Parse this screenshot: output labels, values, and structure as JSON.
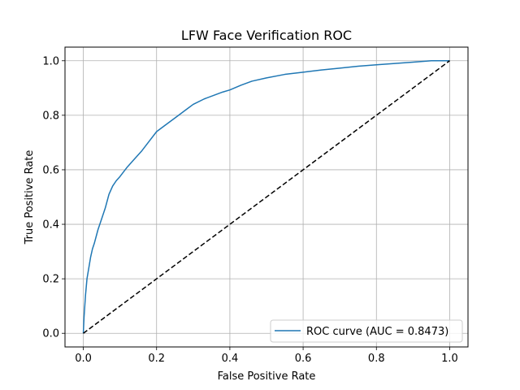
{
  "chart_data": {
    "type": "line",
    "title": "LFW Face Verification ROC",
    "xlabel": "False Positive Rate",
    "ylabel": "True Positive Rate",
    "xlim": [
      -0.05,
      1.05
    ],
    "ylim": [
      -0.05,
      1.05
    ],
    "grid": true,
    "legend_position": "lower right",
    "xticks": [
      0.0,
      0.2,
      0.4,
      0.6,
      0.8,
      1.0
    ],
    "yticks": [
      0.0,
      0.2,
      0.4,
      0.6,
      0.8,
      1.0
    ],
    "xtick_labels": [
      "0.0",
      "0.2",
      "0.4",
      "0.6",
      "0.8",
      "1.0"
    ],
    "ytick_labels": [
      "0.0",
      "0.2",
      "0.4",
      "0.6",
      "0.8",
      "1.0"
    ],
    "series": [
      {
        "name": "ROC curve (AUC = 0.8473)",
        "color": "#1f77b4",
        "style": "solid",
        "x": [
          0.0,
          0.002,
          0.004,
          0.006,
          0.01,
          0.015,
          0.02,
          0.025,
          0.03,
          0.04,
          0.05,
          0.06,
          0.07,
          0.08,
          0.09,
          0.1,
          0.12,
          0.14,
          0.16,
          0.18,
          0.2,
          0.22,
          0.25,
          0.28,
          0.3,
          0.33,
          0.36,
          0.38,
          0.4,
          0.43,
          0.46,
          0.5,
          0.55,
          0.6,
          0.65,
          0.7,
          0.75,
          0.8,
          0.85,
          0.9,
          0.95,
          1.0
        ],
        "y": [
          0.0,
          0.06,
          0.1,
          0.14,
          0.2,
          0.24,
          0.28,
          0.31,
          0.33,
          0.38,
          0.42,
          0.46,
          0.51,
          0.54,
          0.56,
          0.575,
          0.61,
          0.64,
          0.67,
          0.705,
          0.74,
          0.76,
          0.79,
          0.82,
          0.84,
          0.86,
          0.875,
          0.885,
          0.893,
          0.91,
          0.925,
          0.937,
          0.95,
          0.958,
          0.966,
          0.973,
          0.98,
          0.985,
          0.99,
          0.995,
          1.0,
          1.0
        ]
      },
      {
        "name": "",
        "color": "#000000",
        "style": "dashed",
        "x": [
          0.0,
          1.0
        ],
        "y": [
          0.0,
          1.0
        ]
      }
    ]
  }
}
